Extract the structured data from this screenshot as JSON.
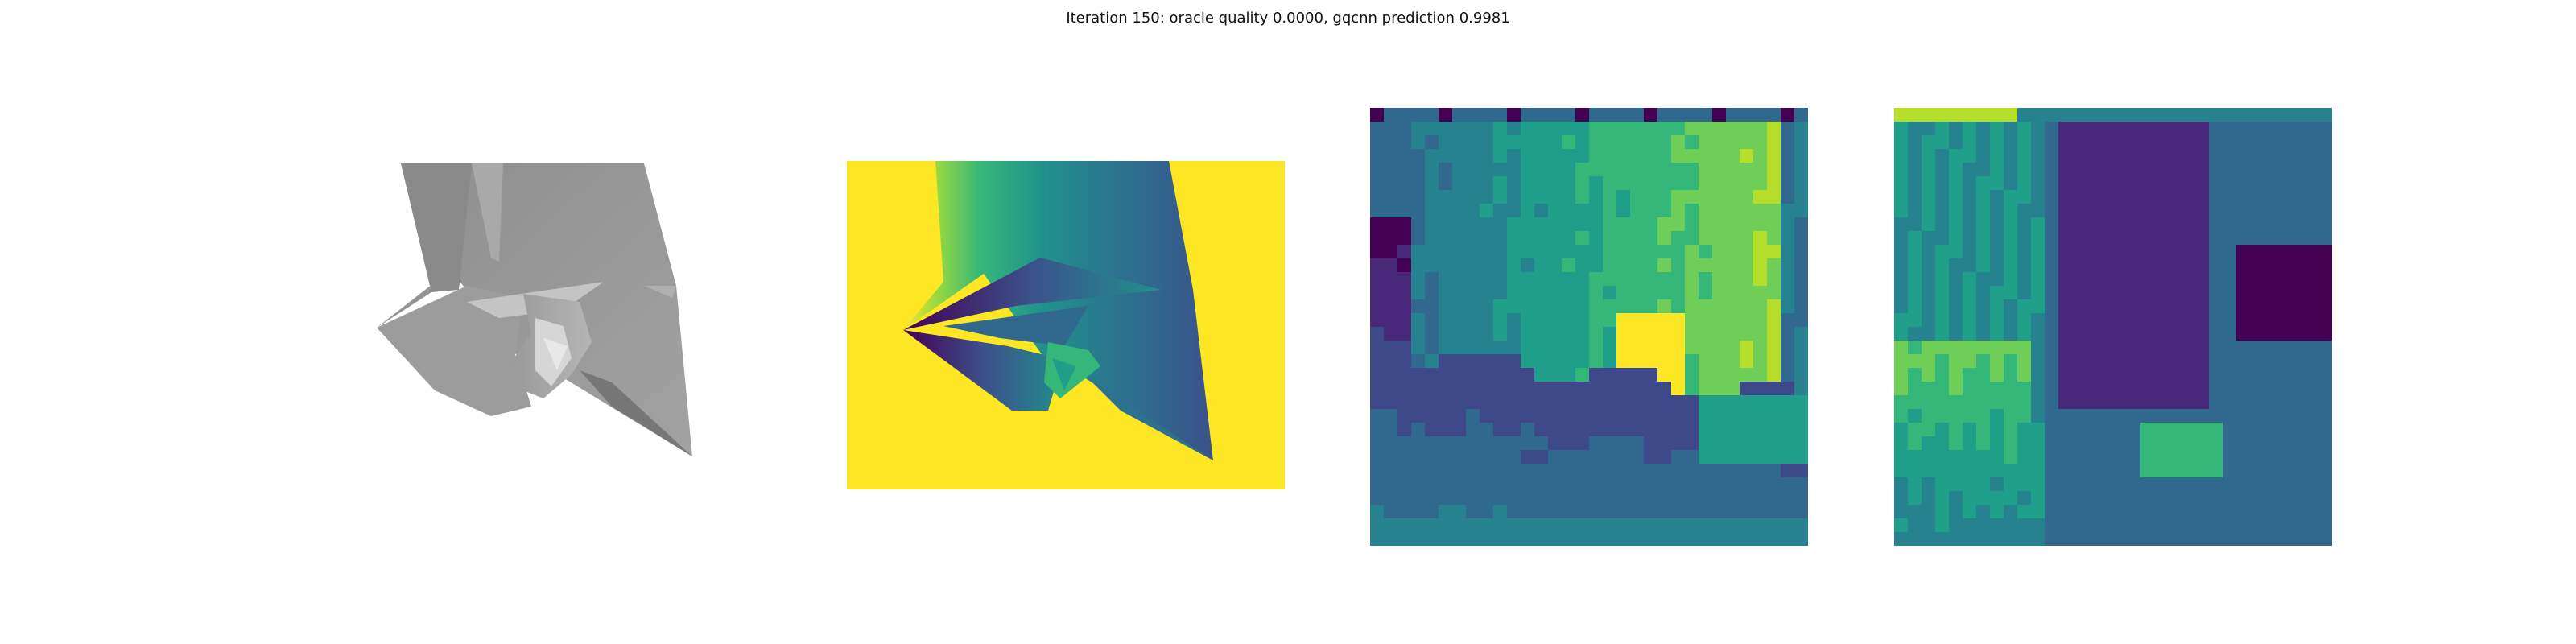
{
  "figure": {
    "suptitle": "Iteration 150: oracle quality 0.0000, gqcnn prediction 0.9981"
  },
  "panels": {
    "render": {
      "icon": "rendered-object-image"
    },
    "depth": {
      "icon": "depth-image",
      "background_color": "#FDE725"
    },
    "crop_a": {
      "icon": "depth-crop-heatmap"
    },
    "crop_b": {
      "icon": "depth-crop-heatmap"
    }
  },
  "colormap": [
    "#440154",
    "#482878",
    "#3E4989",
    "#31688E",
    "#26828E",
    "#1F9E89",
    "#35B779",
    "#6ECE58",
    "#B5DE2B",
    "#FDE725"
  ]
}
